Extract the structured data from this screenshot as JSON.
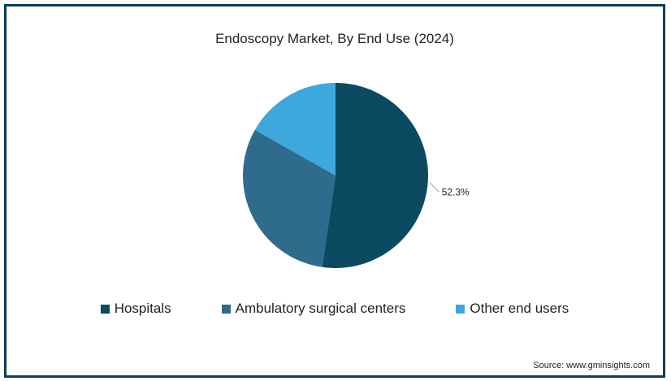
{
  "chart_data": {
    "type": "pie",
    "title": "Endoscopy Market, By End Use (2024)",
    "slices": [
      {
        "label": "Hospitals",
        "value": 52.3,
        "color": "#0b4a60",
        "data_label": "52.3%"
      },
      {
        "label": "Ambulatory surgical centers",
        "value": 30.9,
        "color": "#2f6b8c",
        "data_label": ""
      },
      {
        "label": "Other end users",
        "value": 16.8,
        "color": "#3ea8dd",
        "data_label": ""
      }
    ],
    "legend_position": "bottom"
  },
  "source": "Source: www.gminsights.com"
}
